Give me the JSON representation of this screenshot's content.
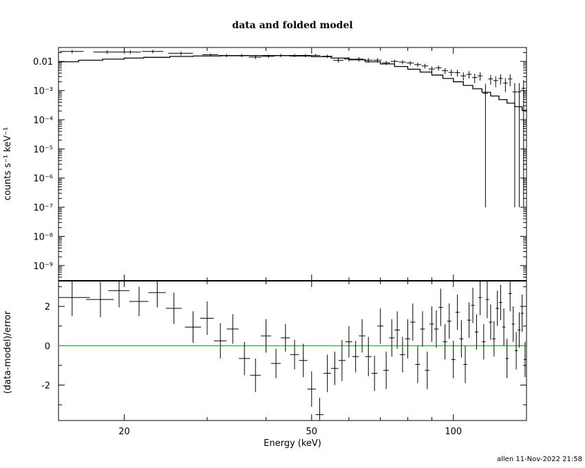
{
  "title": "data and folded model",
  "footer": "allen 11-Nov-2022 21:58",
  "colors": {
    "axis": "#000000",
    "data": "#000000",
    "model": "#000000",
    "zero_line": "#00cc00"
  },
  "chart_data": [
    {
      "type": "scatter",
      "panel": "top",
      "xlabel": "",
      "ylabel": "counts s⁻¹ keV⁻¹",
      "xscale": "log",
      "yscale": "log",
      "xlim": [
        14.5,
        143
      ],
      "ylim": [
        3e-10,
        0.03
      ],
      "ytick_labels": [
        "0.01",
        "10⁻³",
        "10⁻⁴",
        "10⁻⁵",
        "10⁻⁶",
        "10⁻⁷",
        "10⁻⁸",
        "10⁻⁹"
      ],
      "ytick_values": [
        0.01,
        0.001,
        0.0001,
        1e-05,
        1e-06,
        1e-07,
        1e-08,
        1e-09
      ],
      "series": [
        {
          "kind": "data",
          "x": [
            15.5,
            18.4,
            20.6,
            23.0,
            26.4,
            30.5,
            33.0,
            35.5,
            38.0,
            40.5,
            43.0,
            46.0,
            48.5,
            51.0,
            54.0,
            57.0,
            60.0,
            63.0,
            66.0,
            69.0,
            72.0,
            75.0,
            78.0,
            81.0,
            84.0,
            87.0,
            90.0,
            93.0,
            96.0,
            99.0,
            102.0,
            105.0,
            108.0,
            111.0,
            114.0,
            117.0,
            120.0,
            123.0,
            126.0,
            129.0,
            132.0,
            135.0,
            138.0,
            141.0
          ],
          "y": [
            0.022,
            0.021,
            0.021,
            0.022,
            0.019,
            0.017,
            0.016,
            0.016,
            0.014,
            0.015,
            0.016,
            0.016,
            0.016,
            0.016,
            0.015,
            0.011,
            0.012,
            0.012,
            0.011,
            0.011,
            0.009,
            0.01,
            0.0095,
            0.0088,
            0.0078,
            0.007,
            0.0055,
            0.006,
            0.0048,
            0.0042,
            0.0041,
            0.0032,
            0.0036,
            0.0028,
            0.0032,
            0.0008,
            0.0025,
            0.0022,
            0.0026,
            0.0018,
            0.0025,
            0.0009,
            0.0009,
            0.0012
          ],
          "yerr_low": [
            0.003,
            0.003,
            0.003,
            0.003,
            0.003,
            0.002,
            0.002,
            0.002,
            0.002,
            0.002,
            0.002,
            0.002,
            0.002,
            0.002,
            0.002,
            0.002,
            0.002,
            0.002,
            0.002,
            0.002,
            0.0015,
            0.0015,
            0.0015,
            0.0015,
            0.0013,
            0.0013,
            0.0012,
            0.0012,
            0.0011,
            0.0011,
            0.0011,
            0.001,
            0.001,
            0.001,
            0.001,
            0.0007999,
            0.0009,
            0.0009,
            0.001,
            0.0009,
            0.0011,
            0.0008999,
            0.0008999,
            0.0011999
          ],
          "yerr_high": [
            0.003,
            0.003,
            0.003,
            0.003,
            0.003,
            0.002,
            0.002,
            0.002,
            0.002,
            0.002,
            0.002,
            0.002,
            0.002,
            0.002,
            0.002,
            0.002,
            0.002,
            0.002,
            0.002,
            0.002,
            0.0015,
            0.0015,
            0.0015,
            0.0015,
            0.0013,
            0.0013,
            0.0012,
            0.0012,
            0.0011,
            0.0011,
            0.0011,
            0.001,
            0.001,
            0.001,
            0.001,
            0.0009,
            0.0009,
            0.0009,
            0.001,
            0.0009,
            0.0011,
            0.0009,
            0.0009,
            0.0011
          ],
          "xerr": [
            0.9,
            1.2,
            1.1,
            1.2,
            1.6,
            1.2,
            1.2,
            1.2,
            1.2,
            1.2,
            1.2,
            1.4,
            1.2,
            1.2,
            1.4,
            1.4,
            1.4,
            1.4,
            1.4,
            1.4,
            1.4,
            1.4,
            1.4,
            1.4,
            1.4,
            1.4,
            1.4,
            1.4,
            1.4,
            1.4,
            1.4,
            1.4,
            1.4,
            1.4,
            1.4,
            1.4,
            1.4,
            1.4,
            1.4,
            1.4,
            1.4,
            1.4,
            1.4,
            1.4
          ]
        },
        {
          "kind": "model",
          "x": [
            14.5,
            16,
            18,
            20,
            22,
            25,
            28,
            32,
            36,
            40,
            45,
            50,
            55,
            60,
            65,
            70,
            75,
            80,
            85,
            90,
            95,
            100,
            105,
            110,
            115,
            120,
            125,
            130,
            135,
            140,
            143
          ],
          "y": [
            0.0097,
            0.011,
            0.012,
            0.013,
            0.0138,
            0.0148,
            0.0153,
            0.0157,
            0.0158,
            0.0158,
            0.0153,
            0.0145,
            0.013,
            0.0114,
            0.0097,
            0.0082,
            0.0067,
            0.0054,
            0.0043,
            0.0034,
            0.0026,
            0.002,
            0.0015,
            0.00115,
            0.00087,
            0.00065,
            0.00049,
            0.00037,
            0.00028,
            0.00021,
            0.00018
          ]
        }
      ]
    },
    {
      "type": "scatter",
      "panel": "bottom",
      "xlabel": "Energy (keV)",
      "ylabel": "(data-model)/error",
      "xscale": "log",
      "xlim": [
        14.5,
        143
      ],
      "ylim": [
        -3.8,
        3.3
      ],
      "xtick_labels": [
        "20",
        "50",
        "100"
      ],
      "xtick_values": [
        20,
        50,
        100
      ],
      "ytick_labels": [
        "2",
        "0",
        "-2"
      ],
      "ytick_values": [
        2,
        0,
        -2
      ],
      "series": [
        {
          "kind": "residuals",
          "x": [
            15.5,
            17.8,
            19.5,
            21.5,
            23.5,
            25.5,
            28.0,
            30.0,
            32.0,
            34.0,
            36.0,
            38.0,
            40.0,
            42.0,
            44.0,
            46.0,
            48.0,
            50.0,
            52.0,
            54.0,
            56.0,
            58.0,
            60.0,
            62.0,
            64.0,
            66.0,
            68.0,
            70.0,
            72.0,
            74.0,
            76.0,
            78.0,
            80.0,
            82.0,
            84.0,
            86.0,
            88.0,
            90.0,
            92.0,
            94.0,
            96.0,
            98.0,
            100.0,
            102.0,
            104.0,
            106.0,
            108.0,
            110.0,
            112.0,
            114.0,
            116.0,
            118.0,
            120.0,
            122.0,
            124.0,
            126.0,
            128.0,
            130.0,
            132.0,
            134.0,
            136.0,
            138.0,
            140.0,
            142.0
          ],
          "y": [
            2.45,
            2.35,
            2.8,
            2.25,
            2.7,
            1.9,
            0.95,
            1.4,
            0.25,
            0.85,
            -0.65,
            -1.5,
            0.5,
            -0.9,
            0.4,
            -0.45,
            -0.75,
            -2.2,
            -3.5,
            -1.4,
            -1.15,
            -0.75,
            0.2,
            -0.55,
            0.5,
            -0.55,
            -1.4,
            1.0,
            -1.25,
            0.4,
            0.8,
            -0.45,
            0.35,
            1.2,
            -0.95,
            0.85,
            -1.25,
            1.1,
            0.85,
            1.95,
            0.2,
            1.25,
            -0.7,
            1.7,
            0.35,
            -0.95,
            1.3,
            2.05,
            0.7,
            2.45,
            0.2,
            2.35,
            1.2,
            0.35,
            1.9,
            2.2,
            0.95,
            -0.65,
            2.65,
            1.1,
            -0.25,
            0.8,
            1.65,
            -0.7
          ],
          "yerr": [
            0.95,
            0.9,
            0.85,
            0.75,
            0.75,
            0.8,
            0.8,
            0.85,
            0.9,
            0.75,
            0.85,
            0.85,
            0.85,
            0.75,
            0.7,
            0.75,
            0.85,
            0.9,
            0.85,
            0.95,
            0.85,
            1.05,
            0.8,
            0.8,
            0.85,
            1.0,
            0.9,
            0.9,
            0.95,
            0.95,
            0.95,
            0.9,
            1.0,
            0.95,
            0.95,
            0.9,
            0.95,
            0.9,
            0.95,
            0.95,
            0.9,
            0.9,
            0.95,
            0.9,
            0.95,
            0.95,
            0.9,
            0.9,
            0.9,
            0.9,
            0.9,
            0.95,
            0.9,
            0.9,
            0.9,
            0.9,
            0.95,
            1.0,
            0.9,
            0.9,
            0.95,
            0.9,
            0.95,
            0.9
          ],
          "xerr": [
            1.4,
            1.2,
            1.0,
            1.0,
            1.0,
            1.0,
            1.1,
            1.0,
            1.0,
            1.0,
            1.0,
            1.0,
            1.0,
            1.0,
            1.0,
            1.0,
            1.0,
            1.0,
            1.0,
            1.0,
            1.0,
            1.0,
            1.0,
            1.0,
            1.0,
            1.0,
            1.0,
            1.0,
            1.0,
            1.0,
            1.0,
            1.0,
            1.0,
            1.0,
            1.0,
            1.0,
            1.0,
            1.0,
            1.0,
            1.0,
            1.0,
            1.0,
            1.0,
            1.0,
            1.0,
            1.0,
            1.0,
            1.0,
            1.0,
            1.0,
            1.0,
            1.0,
            1.0,
            1.0,
            1.0,
            1.0,
            1.0,
            1.0,
            1.0,
            1.0,
            1.0,
            1.0,
            1.0,
            1.0
          ]
        }
      ],
      "reference_line": 0
    }
  ]
}
